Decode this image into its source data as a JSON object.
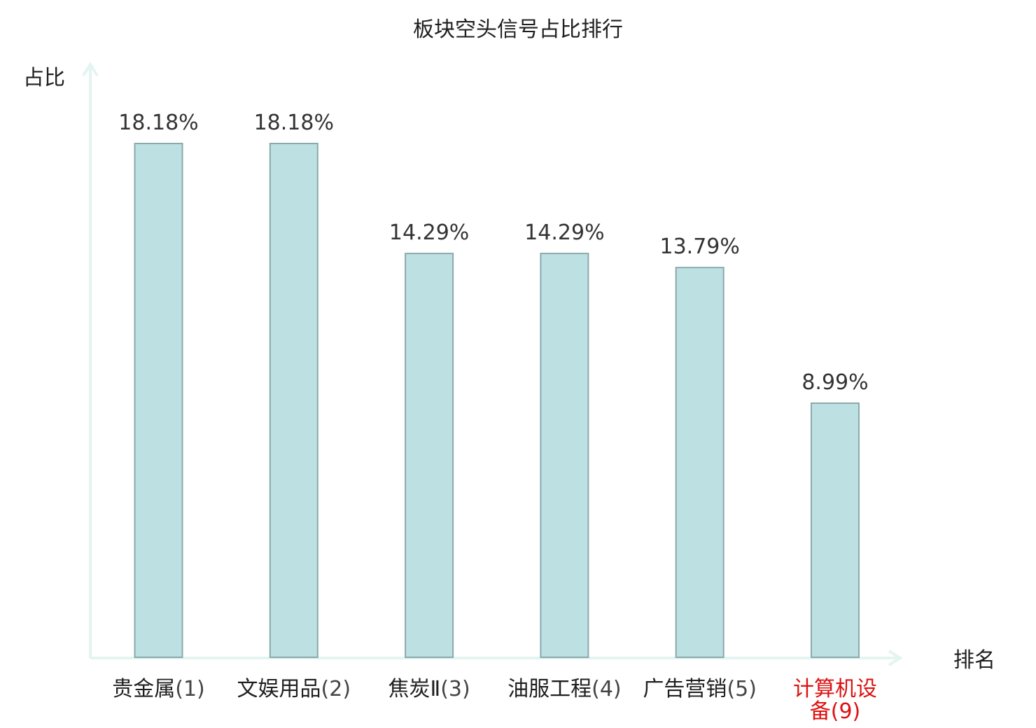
{
  "chart_data": {
    "type": "bar",
    "title": "板块空头信号占比排行",
    "ylabel": "占比",
    "xlabel": "排名",
    "categories": [
      {
        "label": "贵金属",
        "rank": "(1)",
        "highlight": false
      },
      {
        "label": "文娱用品",
        "rank": "(2)",
        "highlight": false
      },
      {
        "label": "焦炭Ⅱ",
        "rank": "(3)",
        "highlight": false
      },
      {
        "label": "油服工程",
        "rank": "(4)",
        "highlight": false
      },
      {
        "label": "广告营销",
        "rank": "(5)",
        "highlight": false
      },
      {
        "label": "计算机设备",
        "rank": "(9)",
        "highlight": true
      }
    ],
    "values": [
      18.18,
      18.18,
      14.29,
      14.29,
      13.79,
      8.99
    ],
    "value_labels": [
      "18.18%",
      "18.18%",
      "14.29%",
      "14.29%",
      "13.79%",
      "8.99%"
    ],
    "ylim": [
      0,
      19.0
    ],
    "grid": false,
    "colors": {
      "bar_fill": "#bde1e3",
      "bar_stroke": "#8aa9ab",
      "axis": "#e3f4f1",
      "highlight_label": "#dd1111",
      "normal_label": "#1f1f1f",
      "rank_label": "#444444"
    }
  }
}
